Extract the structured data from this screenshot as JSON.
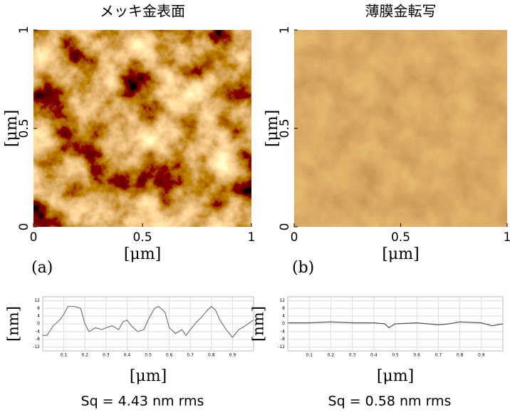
{
  "chart_data": [
    {
      "type": "image",
      "title": "メッキ金表面",
      "panel_label": "(a)",
      "xlabel": "[μm]",
      "ylabel": "[μm]",
      "xlim": [
        0,
        1
      ],
      "ylim": [
        0,
        1
      ],
      "xticks": [
        0,
        0.5,
        1
      ],
      "yticks": [
        0,
        0.5,
        1
      ]
    },
    {
      "type": "image",
      "title": "薄膜金転写",
      "panel_label": "(b)",
      "xlabel": "[μm]",
      "ylabel": "[μm]",
      "xlim": [
        0,
        1
      ],
      "ylim": [
        0,
        1
      ],
      "xticks": [
        0,
        0.5,
        1
      ],
      "yticks": [
        0,
        0.5,
        1
      ]
    },
    {
      "type": "line",
      "xlabel": "[μm]",
      "ylabel": "[nm]",
      "caption": "Sq = 4.43 nm rms",
      "color": "#777777",
      "xlim": [
        0,
        1
      ],
      "ylim": [
        -14,
        14
      ],
      "xticks": [
        0.1,
        0.2,
        0.3,
        0.4,
        0.5,
        0.6,
        0.7,
        0.8,
        0.9
      ],
      "yticks": [
        12,
        8,
        4,
        0,
        -4,
        -8,
        -12
      ],
      "grid": true,
      "x": [
        0,
        0.02,
        0.05,
        0.08,
        0.1,
        0.12,
        0.15,
        0.18,
        0.2,
        0.22,
        0.25,
        0.28,
        0.3,
        0.33,
        0.36,
        0.38,
        0.4,
        0.42,
        0.45,
        0.48,
        0.5,
        0.53,
        0.55,
        0.58,
        0.6,
        0.63,
        0.66,
        0.68,
        0.7,
        0.73,
        0.75,
        0.78,
        0.8,
        0.82,
        0.84,
        0.87,
        0.9,
        0.93,
        0.96,
        1.0
      ],
      "values": [
        -6,
        -6,
        -1,
        2,
        5,
        9,
        9,
        8,
        0,
        -4,
        -2,
        -3,
        -2,
        -1,
        -3,
        1,
        2,
        -1,
        -4,
        -3,
        2,
        8,
        9,
        6,
        -2,
        -5,
        -3,
        -6,
        -3,
        1,
        3,
        7,
        9,
        7,
        2,
        -3,
        -7,
        -3,
        -1,
        2
      ]
    },
    {
      "type": "line",
      "xlabel": "[μm]",
      "ylabel": "[nm]",
      "caption": "Sq = 0.58 nm rms",
      "color": "#555555",
      "xlim": [
        0,
        1
      ],
      "ylim": [
        -14,
        14
      ],
      "xticks": [
        0.1,
        0.2,
        0.3,
        0.4,
        0.5,
        0.6,
        0.7,
        0.8,
        0.9
      ],
      "yticks": [
        12,
        8,
        4,
        0,
        -4,
        -8,
        -12
      ],
      "grid": true,
      "x": [
        0,
        0.1,
        0.2,
        0.3,
        0.4,
        0.45,
        0.47,
        0.5,
        0.6,
        0.7,
        0.75,
        0.8,
        0.9,
        0.95,
        1.0
      ],
      "values": [
        0.5,
        0.5,
        1,
        0.5,
        0.5,
        0,
        -2,
        0,
        0.5,
        -0.5,
        0,
        1,
        0.5,
        -1,
        0
      ]
    }
  ]
}
